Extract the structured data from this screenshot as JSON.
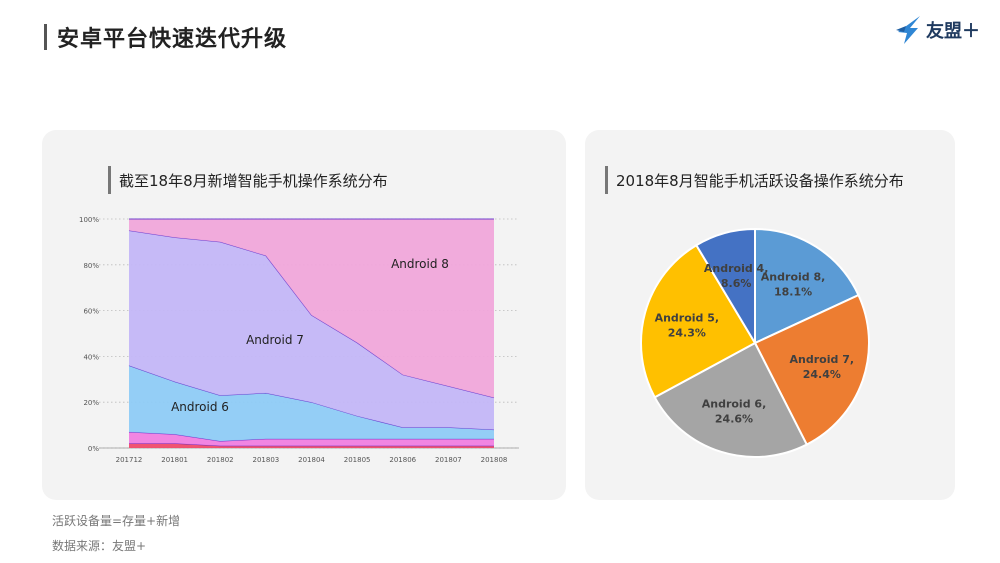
{
  "header": {
    "title": "安卓平台快速迭代升级",
    "logo_text": "友盟＋"
  },
  "left_panel": {
    "title": "截至18年8月新增智能手机操作系统分布"
  },
  "right_panel": {
    "title": "2018年8月智能手机活跃设备操作系统分布"
  },
  "footnotes": {
    "note1": "活跃设备量=存量+新增",
    "note2": "数据来源：友盟+"
  },
  "chart_data": [
    {
      "type": "area",
      "stacked": true,
      "x": [
        "201712",
        "201801",
        "201802",
        "201803",
        "201804",
        "201805",
        "201806",
        "201807",
        "201808"
      ],
      "y_ticks": [
        "0%",
        "20%",
        "40%",
        "60%",
        "80%",
        "100%"
      ],
      "ylim": [
        0,
        100
      ],
      "grid": true,
      "series": [
        {
          "name": "",
          "color": "#f04a6a",
          "values": [
            2,
            2,
            1,
            1,
            1,
            1,
            1,
            1,
            1
          ]
        },
        {
          "name": "",
          "color": "#f07ee0",
          "values": [
            5,
            4,
            2,
            3,
            3,
            3,
            3,
            3,
            3
          ]
        },
        {
          "name": "Android 6",
          "color": "#8ecbf5",
          "values": [
            29,
            23,
            20,
            20,
            16,
            10,
            5,
            5,
            4
          ]
        },
        {
          "name": "Android 7",
          "color": "#c3b6f7",
          "values": [
            59,
            63,
            67,
            60,
            38,
            32,
            23,
            18,
            14
          ]
        },
        {
          "name": "Android 8",
          "color": "#f0a6da",
          "values": [
            5,
            8,
            10,
            16,
            42,
            54,
            68,
            73,
            78
          ]
        }
      ]
    },
    {
      "type": "pie",
      "slices": [
        {
          "name": "Android 8",
          "value": 18.1,
          "label": "Android 8,",
          "pct": "18.1%",
          "color": "#5b9bd5"
        },
        {
          "name": "Android 7",
          "value": 24.4,
          "label": "Android 7,",
          "pct": "24.4%",
          "color": "#ed7d31"
        },
        {
          "name": "Android 6",
          "value": 24.6,
          "label": "Android 6,",
          "pct": "24.6%",
          "color": "#a5a5a5"
        },
        {
          "name": "Android 5",
          "value": 24.3,
          "label": "Android 5,",
          "pct": "24.3%",
          "color": "#ffc000"
        },
        {
          "name": "Android 4",
          "value": 8.6,
          "label": "Android 4,",
          "pct": "8.6%",
          "color": "#4472c4"
        }
      ]
    }
  ]
}
